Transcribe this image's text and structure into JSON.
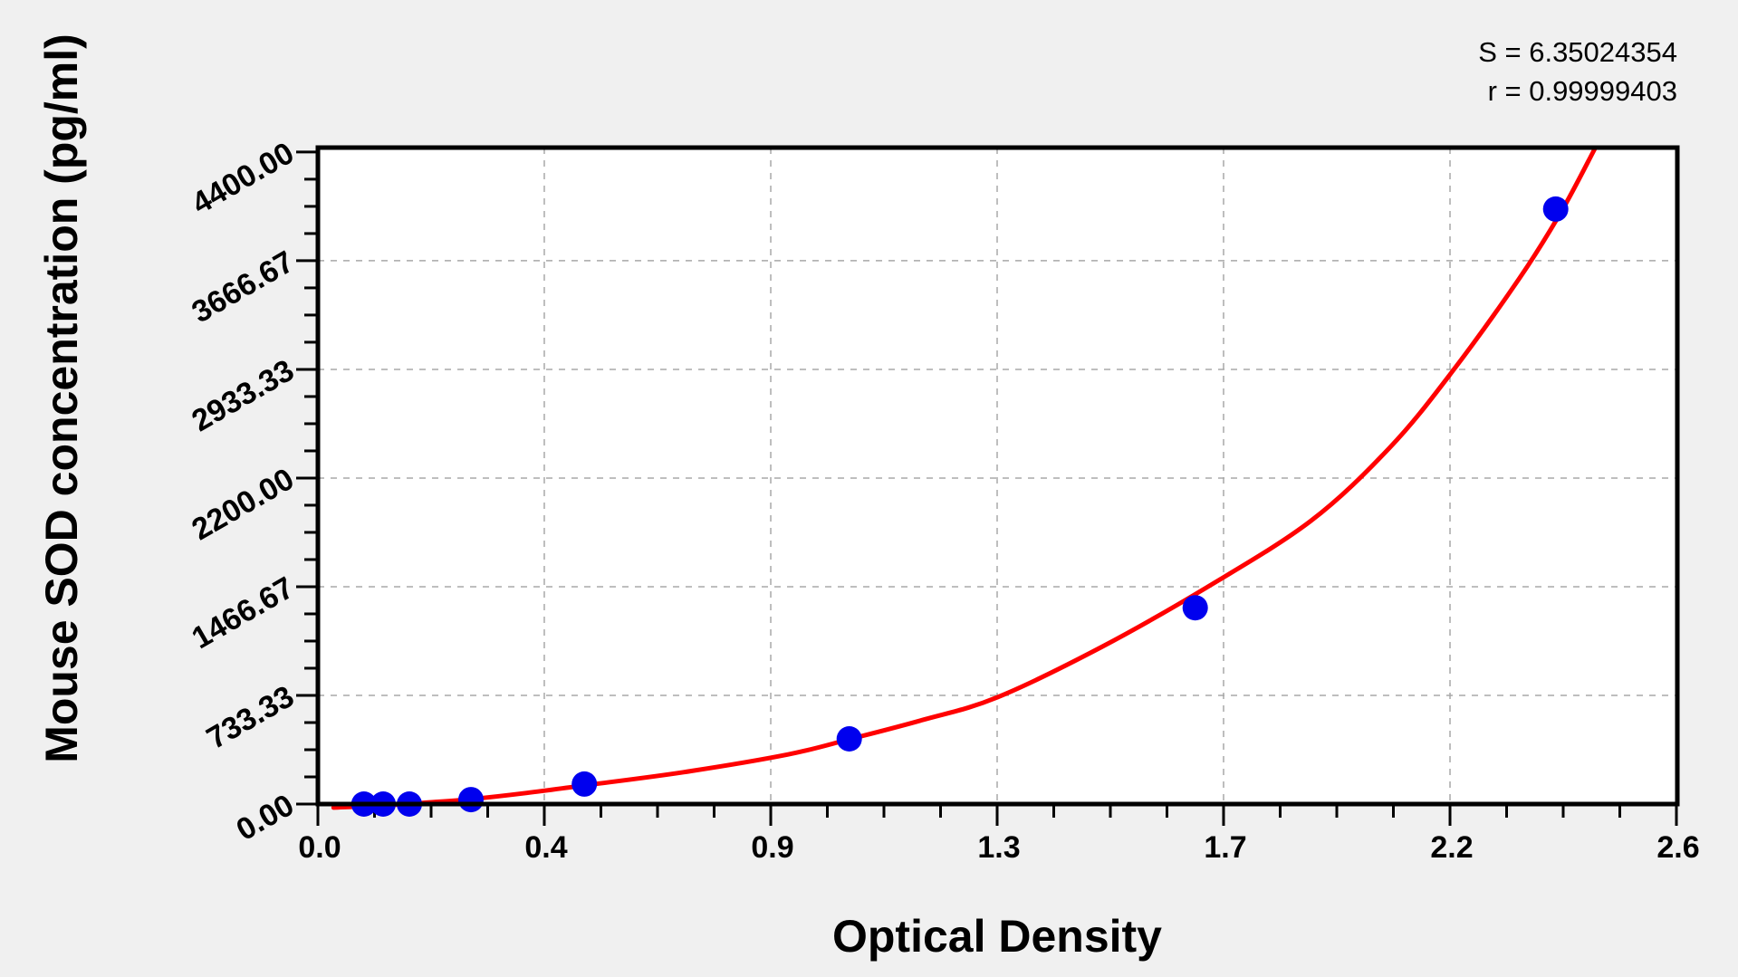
{
  "chart_data": {
    "type": "scatter",
    "title": "",
    "xlabel": "Optical Density",
    "ylabel": "Mouse SOD concentration (pg/ml)",
    "xlim": [
      0,
      2.6
    ],
    "ylim": [
      0,
      4430
    ],
    "grid": true,
    "grid_style": "dashed",
    "x_ticks": {
      "values": [
        0,
        0.4333,
        0.8667,
        1.3,
        1.7333,
        2.1667,
        2.6
      ],
      "labels": [
        "0.0",
        "0.4",
        "0.9",
        "1.3",
        "1.7",
        "2.2",
        "2.6"
      ],
      "minor_per_major": 3
    },
    "y_ticks": {
      "values": [
        0,
        733.33,
        1466.67,
        2200,
        2933.33,
        3666.67,
        4400
      ],
      "labels": [
        "0.00",
        "733.33",
        "1466.67",
        "2200.00",
        "2933.33",
        "3666.67",
        "4400.00"
      ],
      "minor_per_major": 3
    },
    "points": [
      {
        "od": 0.088,
        "concentration": 0
      },
      {
        "od": 0.125,
        "concentration": 0
      },
      {
        "od": 0.175,
        "concentration": 0
      },
      {
        "od": 0.293,
        "concentration": 30
      },
      {
        "od": 0.51,
        "concentration": 135
      },
      {
        "od": 1.017,
        "concentration": 440
      },
      {
        "od": 1.679,
        "concentration": 1325
      },
      {
        "od": 2.369,
        "concentration": 4015
      }
    ],
    "fit_curve": {
      "kind": "spline-through-samples",
      "samples": [
        [
          0.03,
          -24
        ],
        [
          0.12,
          -10
        ],
        [
          0.2,
          8
        ],
        [
          0.29,
          32
        ],
        [
          0.4,
          75
        ],
        [
          0.51,
          126
        ],
        [
          0.7,
          215
        ],
        [
          0.9,
          335
        ],
        [
          1.02,
          440
        ],
        [
          1.16,
          570
        ],
        [
          1.3,
          720
        ],
        [
          1.5,
          1060
        ],
        [
          1.7,
          1460
        ],
        [
          1.9,
          1910
        ],
        [
          2.05,
          2400
        ],
        [
          2.167,
          2900
        ],
        [
          2.3,
          3550
        ],
        [
          2.38,
          4000
        ],
        [
          2.445,
          4430
        ]
      ]
    },
    "annotations": {
      "s": "S = 6.35024354",
      "r": "r = 0.99999403"
    },
    "colors": {
      "point": "#0000ee",
      "curve": "#ff0000",
      "grid": "#a8a8a8",
      "axis": "#000000",
      "plot_bg": "#ffffff",
      "page_bg": "#f0f0f0"
    }
  }
}
